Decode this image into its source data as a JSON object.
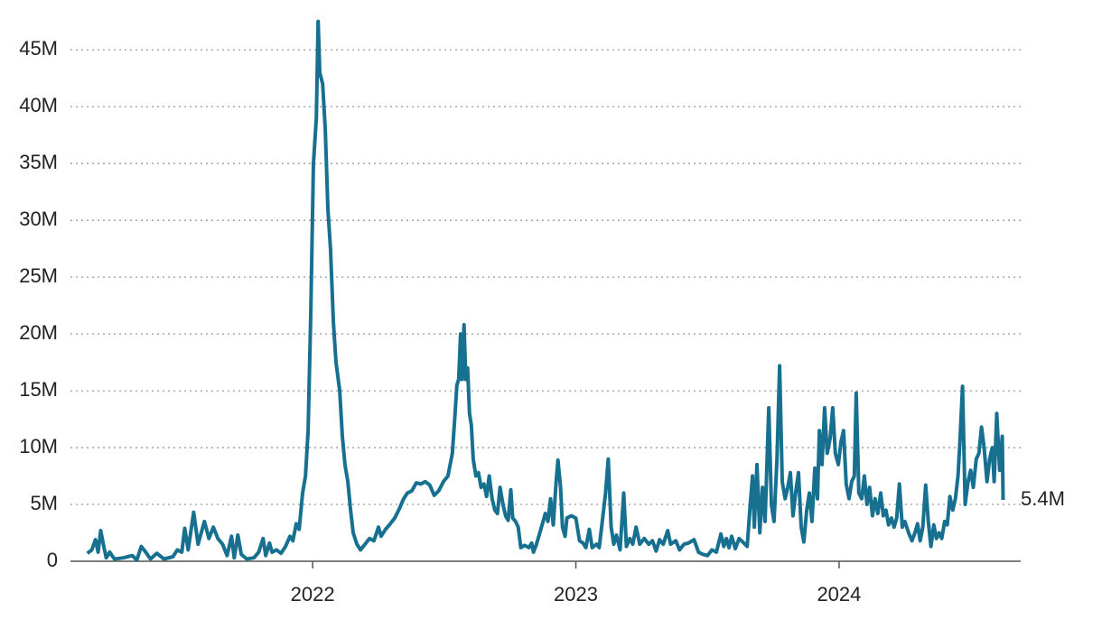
{
  "chart_data": {
    "type": "line",
    "color": "#17708f",
    "annotation": "5.4M",
    "xlim": [
      2021.08,
      2024.69
    ],
    "xticks": [
      2022,
      2023,
      2024
    ],
    "ylim": [
      0,
      47.8
    ],
    "yticks": [
      0,
      {
        "value": 5,
        "label": "5M"
      },
      {
        "value": 10,
        "label": "10M"
      },
      {
        "value": 15,
        "label": "15M"
      },
      {
        "value": 20,
        "label": "20M"
      },
      {
        "value": 25,
        "label": "25M"
      },
      {
        "value": 30,
        "label": "30M"
      },
      {
        "value": 35,
        "label": "35M"
      },
      {
        "value": 40,
        "label": "40M"
      },
      {
        "value": 45,
        "label": "45M"
      }
    ],
    "grid": true,
    "x": [
      2021.144,
      2021.161,
      2021.175,
      2021.185,
      2021.195,
      2021.205,
      2021.216,
      2021.229,
      2021.247,
      2021.281,
      2021.315,
      2021.332,
      2021.349,
      2021.366,
      2021.384,
      2021.408,
      2021.435,
      2021.469,
      2021.486,
      2021.503,
      2021.514,
      2021.527,
      2021.548,
      2021.565,
      2021.589,
      2021.606,
      2021.623,
      2021.64,
      2021.658,
      2021.675,
      2021.692,
      2021.702,
      2021.716,
      2021.729,
      2021.75,
      2021.777,
      2021.795,
      2021.812,
      2021.822,
      2021.836,
      2021.846,
      2021.863,
      2021.88,
      2021.897,
      2021.914,
      2021.925,
      2021.938,
      2021.949,
      2021.962,
      2021.973,
      2021.983,
      2021.993,
      2022.003,
      2022.014,
      2022.021,
      2022.027,
      2022.038,
      2022.048,
      2022.058,
      2022.068,
      2022.079,
      2022.089,
      2022.103,
      2022.113,
      2022.123,
      2022.134,
      2022.144,
      2022.154,
      2022.168,
      2022.182,
      2022.199,
      2022.216,
      2022.233,
      2022.25,
      2022.26,
      2022.277,
      2022.295,
      2022.312,
      2022.329,
      2022.346,
      2022.36,
      2022.377,
      2022.394,
      2022.411,
      2022.428,
      2022.445,
      2022.462,
      2022.479,
      2022.497,
      2022.514,
      2022.531,
      2022.541,
      2022.548,
      2022.555,
      2022.562,
      2022.568,
      2022.575,
      2022.582,
      2022.589,
      2022.596,
      2022.603,
      2022.61,
      2022.62,
      2022.63,
      2022.64,
      2022.651,
      2022.661,
      2022.671,
      2022.682,
      2022.692,
      2022.702,
      2022.712,
      2022.723,
      2022.733,
      2022.743,
      2022.753,
      2022.76,
      2022.771,
      2022.781,
      2022.791,
      2022.805,
      2022.822,
      2022.832,
      2022.839,
      2022.849,
      2022.863,
      2022.873,
      2022.884,
      2022.894,
      2022.904,
      2022.914,
      2022.925,
      2022.932,
      2022.942,
      2022.949,
      2022.959,
      2022.966,
      2022.983,
      2023.0,
      2023.014,
      2023.027,
      2023.038,
      2023.051,
      2023.062,
      2023.079,
      2023.089,
      2023.103,
      2023.113,
      2023.123,
      2023.134,
      2023.144,
      2023.154,
      2023.168,
      2023.182,
      2023.192,
      2023.205,
      2023.216,
      2023.229,
      2023.243,
      2023.26,
      2023.277,
      2023.291,
      2023.305,
      2023.318,
      2023.332,
      2023.349,
      2023.36,
      2023.38,
      2023.394,
      2023.411,
      2023.428,
      2023.449,
      2023.466,
      2023.483,
      2023.5,
      2023.517,
      2023.534,
      2023.551,
      2023.562,
      2023.572,
      2023.582,
      2023.592,
      2023.606,
      2023.62,
      2023.634,
      2023.651,
      2023.661,
      2023.671,
      2023.678,
      2023.688,
      2023.699,
      2023.709,
      2023.719,
      2023.733,
      2023.743,
      2023.753,
      2023.764,
      2023.774,
      2023.784,
      2023.795,
      2023.805,
      2023.815,
      2023.825,
      2023.836,
      2023.846,
      2023.856,
      2023.866,
      2023.877,
      2023.887,
      2023.897,
      2023.908,
      2023.918,
      2023.925,
      2023.935,
      2023.945,
      2023.955,
      2023.966,
      2023.976,
      2023.986,
      2023.997,
      2024.007,
      2024.017,
      2024.027,
      2024.038,
      2024.048,
      2024.058,
      2024.065,
      2024.075,
      2024.086,
      2024.096,
      2024.106,
      2024.116,
      2024.127,
      2024.137,
      2024.147,
      2024.158,
      2024.168,
      2024.178,
      2024.188,
      2024.199,
      2024.209,
      2024.219,
      2024.229,
      2024.24,
      2024.25,
      2024.264,
      2024.277,
      2024.288,
      2024.298,
      2024.308,
      2024.318,
      2024.329,
      2024.339,
      2024.349,
      2024.36,
      2024.37,
      2024.38,
      2024.39,
      2024.401,
      2024.411,
      2024.421,
      2024.432,
      2024.442,
      2024.452,
      2024.459,
      2024.469,
      2024.479,
      2024.49,
      2024.5,
      2024.51,
      2024.521,
      2024.531,
      2024.541,
      2024.551,
      2024.562,
      2024.572,
      2024.582,
      2024.589,
      2024.599,
      2024.61,
      2024.62,
      2024.623
    ],
    "values": [
      0.7,
      1.0,
      1.9,
      0.8,
      2.7,
      1.5,
      0.3,
      0.8,
      0.2,
      0.3,
      0.5,
      0.1,
      1.3,
      0.8,
      0.2,
      0.7,
      0.2,
      0.4,
      1.0,
      0.8,
      2.9,
      1.0,
      4.3,
      1.5,
      3.5,
      2.0,
      3.0,
      2.0,
      1.5,
      0.5,
      2.2,
      0.3,
      2.3,
      0.6,
      0.2,
      0.3,
      0.8,
      2.0,
      0.5,
      1.6,
      0.8,
      1.0,
      0.7,
      1.3,
      2.2,
      1.8,
      3.3,
      2.8,
      6.0,
      7.5,
      11.5,
      22,
      35,
      39,
      47.5,
      43,
      42,
      38,
      31,
      27.5,
      21,
      17.5,
      15,
      11,
      8.5,
      7,
      4.5,
      2.5,
      1.5,
      1.0,
      1.5,
      2.0,
      1.8,
      3.0,
      2.2,
      2.8,
      3.3,
      3.8,
      4.6,
      5.5,
      6.0,
      6.2,
      6.9,
      6.8,
      7.0,
      6.7,
      5.8,
      6.2,
      7.0,
      7.5,
      9.5,
      13,
      15.5,
      16,
      20,
      16,
      20.8,
      16,
      17,
      13,
      12,
      9,
      7.5,
      7.8,
      6.5,
      6.8,
      5.7,
      7.5,
      5.5,
      4.5,
      4.2,
      6.5,
      5.0,
      4.0,
      3.6,
      6.3,
      3.8,
      3.5,
      3.0,
      1.2,
      1.4,
      1.2,
      1.6,
      0.8,
      1.4,
      2.5,
      3.3,
      4.2,
      3.5,
      5.5,
      3.2,
      7.0,
      8.9,
      6.5,
      3.0,
      2.2,
      3.8,
      4.0,
      3.8,
      1.8,
      1.6,
      1.2,
      2.8,
      1.2,
      1.5,
      1.2,
      4.0,
      6.0,
      9.0,
      3.0,
      1.5,
      2.3,
      1.0,
      6.0,
      1.3,
      2.0,
      1.5,
      3.0,
      1.5,
      2.0,
      1.5,
      1.8,
      0.9,
      1.9,
      1.5,
      2.7,
      1.5,
      1.8,
      1.0,
      1.5,
      1.6,
      1.9,
      0.8,
      0.6,
      0.5,
      1.0,
      0.8,
      2.4,
      1.3,
      2.0,
      1.2,
      2.2,
      1.1,
      2.0,
      1.7,
      1.3,
      4.5,
      7.5,
      3.0,
      8.5,
      2.5,
      6.5,
      3.5,
      13.5,
      5.0,
      3.5,
      9.0,
      17.2,
      7.0,
      5.5,
      6.5,
      7.8,
      4.0,
      6.2,
      7.8,
      3.0,
      1.7,
      4.5,
      6.0,
      3.5,
      8.2,
      5.5,
      11.5,
      8.5,
      13.5,
      9.5,
      10.8,
      13.5,
      9.5,
      8.5,
      10.5,
      11.5,
      6.8,
      5.5,
      7.0,
      7.5,
      14.8,
      6.0,
      5.5,
      7.5,
      5.0,
      6.5,
      4.0,
      5.5,
      4.2,
      6.0,
      4.0,
      4.5,
      3.2,
      3.8,
      3.0,
      3.8,
      6.8,
      3.0,
      3.5,
      2.5,
      1.8,
      2.5,
      3.3,
      1.8,
      3.0,
      6.7,
      3.5,
      1.3,
      3.2,
      2.0,
      2.5,
      2.0,
      3.5,
      3.2,
      5.7,
      4.5,
      5.5,
      7.5,
      10.5,
      15.4,
      5.0,
      7.0,
      8.0,
      6.5,
      9.0,
      9.5,
      11.8,
      10.0,
      7.0,
      9.0,
      10.0,
      7.0,
      13.0,
      8.0,
      11.0,
      5.4
    ]
  }
}
